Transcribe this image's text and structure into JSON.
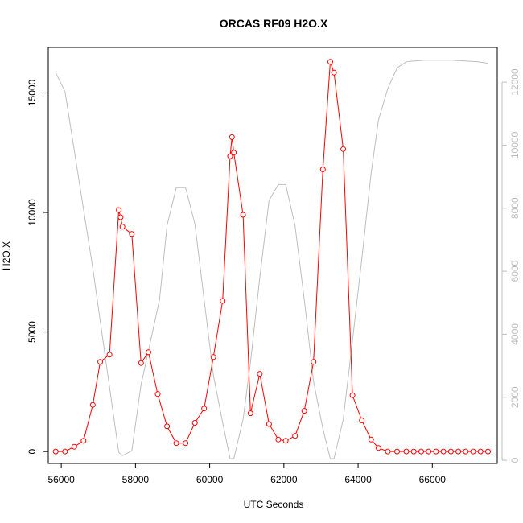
{
  "chart_data": {
    "type": "line",
    "title": "ORCAS RF09 H2O.X",
    "xlabel": "UTC Seconds",
    "ylabel": "H2O.X",
    "xlim": [
      55650,
      67750
    ],
    "ylim": [
      -500,
      16900
    ],
    "y2lim": [
      -100,
      13100
    ],
    "x_ticks": [
      56000,
      58000,
      60000,
      62000,
      64000,
      66000
    ],
    "x_tick_labels": [
      "56000",
      "58000",
      "60000",
      "62000",
      "64000",
      "66000"
    ],
    "y_ticks": [
      0,
      5000,
      10000,
      15000
    ],
    "y_tick_labels": [
      "0",
      "5000",
      "10000",
      "15000"
    ],
    "y2_ticks": [
      0,
      2000,
      4000,
      6000,
      8000,
      10000,
      12000
    ],
    "y2_tick_labels": [
      "0",
      "2000",
      "4000",
      "6000",
      "8000",
      "10000",
      "12000"
    ],
    "colors": {
      "primary": "#ff0000",
      "secondary": "#bebebe",
      "axis": "#000000"
    },
    "grid": false,
    "series": [
      {
        "axis": "left",
        "style": "line-points",
        "x": [
          55850,
          56100,
          56350,
          56600,
          56850,
          57050,
          57300,
          57550,
          57600,
          57650,
          57900,
          58150,
          58350,
          58600,
          58850,
          59100,
          59350,
          59600,
          59850,
          60100,
          60350,
          60550,
          60600,
          60650,
          60900,
          61100,
          61350,
          61600,
          61850,
          62050,
          62300,
          62550,
          62800,
          63050,
          63250,
          63350,
          63600,
          63850,
          64100,
          64350,
          64550,
          64800,
          65050,
          65300,
          65500,
          65700,
          65900,
          66100,
          66300,
          66500,
          66700,
          66900,
          67100,
          67300,
          67500
        ],
        "y": [
          0,
          0,
          200,
          450,
          1950,
          3750,
          4050,
          10100,
          9800,
          9400,
          9100,
          3700,
          4150,
          2400,
          1050,
          350,
          350,
          1200,
          1800,
          3950,
          6300,
          12350,
          13150,
          12500,
          9900,
          1600,
          3250,
          1150,
          500,
          450,
          650,
          1700,
          3750,
          11800,
          16300,
          15850,
          12650,
          2350,
          1300,
          500,
          150,
          0,
          0,
          0,
          0,
          0,
          0,
          0,
          0,
          0,
          0,
          0,
          0,
          0,
          0
        ]
      },
      {
        "axis": "right",
        "style": "line",
        "x": [
          55850,
          56100,
          56850,
          57550,
          57650,
          57900,
          58150,
          58650,
          58850,
          59100,
          59350,
          59600,
          59850,
          60100,
          60350,
          60550,
          60650,
          60900,
          61100,
          61350,
          61600,
          61850,
          62050,
          62300,
          62550,
          62800,
          63050,
          63250,
          63350,
          63600,
          63850,
          64100,
          64350,
          64550,
          64800,
          65050,
          65300,
          65800,
          66500,
          67200,
          67500
        ],
        "y": [
          12300,
          11700,
          6100,
          250,
          150,
          300,
          2400,
          5100,
          7450,
          8650,
          8650,
          7500,
          5100,
          2700,
          1200,
          50,
          50,
          1300,
          3100,
          5800,
          8250,
          8750,
          8750,
          7450,
          5100,
          2500,
          1000,
          50,
          50,
          1300,
          3800,
          6400,
          9100,
          10800,
          11800,
          12450,
          12650,
          12700,
          12700,
          12650,
          12600
        ]
      }
    ]
  }
}
